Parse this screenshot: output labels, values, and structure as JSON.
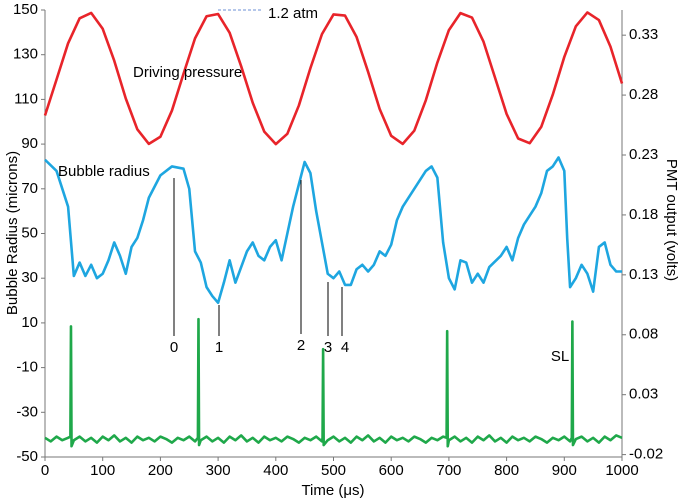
{
  "chart_data": {
    "type": "line",
    "x_label": "Time (μs)",
    "y_label": "Bubble Radius (microns)",
    "y2_label": "PMT output (volts)",
    "xlim": [
      0,
      1000
    ],
    "xticks": [
      0,
      100,
      200,
      300,
      400,
      500,
      600,
      700,
      800,
      900,
      1000
    ],
    "ylim": [
      -50,
      150
    ],
    "yticks": [
      -50,
      -30,
      -10,
      10,
      30,
      50,
      70,
      90,
      110,
      130,
      150
    ],
    "y2lim": [
      -0.022,
      0.351
    ],
    "y2ticks": [
      -0.02,
      0.03,
      0.08,
      0.13,
      0.18,
      0.23,
      0.28,
      0.33
    ],
    "grid": false,
    "annotations": [
      "1.2 atm",
      "Driving pressure",
      "Bubble radius",
      "0",
      "1",
      "2",
      "3",
      "4",
      "SL"
    ],
    "series": [
      {
        "name": "Driving pressure",
        "color": "#e8242a",
        "x": [
          0,
          20,
          40,
          60,
          80,
          100,
          120,
          140,
          160,
          180,
          200,
          220,
          240,
          260,
          280,
          300,
          320,
          340,
          360,
          380,
          400,
          420,
          440,
          460,
          480,
          500,
          520,
          540,
          560,
          580,
          600,
          620,
          640,
          660,
          680,
          700,
          720,
          740,
          760,
          780,
          800,
          820,
          840,
          860,
          880,
          900,
          920,
          940,
          960,
          980,
          1000
        ],
        "values": [
          102.8,
          118.9,
          135.1,
          146.3,
          148.7,
          141.6,
          127.3,
          110.4,
          96.6,
          90.1,
          93.3,
          105.0,
          121.4,
          137.3,
          147.2,
          148.2,
          139.8,
          124.8,
          108.5,
          95.6,
          90.0,
          94.6,
          107.3,
          124.0,
          139.2,
          148.0,
          147.5,
          137.9,
          122.3,
          105.7,
          93.7,
          90.1,
          96.0,
          109.6,
          126.5,
          141.0,
          148.6,
          146.6,
          135.8,
          119.7,
          103.5,
          92.5,
          90.4,
          97.7,
          112.1,
          129.0,
          142.7,
          148.9,
          145.5,
          133.6,
          117.1
        ]
      },
      {
        "name": "Bubble radius",
        "color": "#1ea6e0",
        "x": [
          0,
          20,
          40,
          50,
          60,
          70,
          80,
          90,
          100,
          110,
          120,
          130,
          140,
          150,
          160,
          170,
          180,
          200,
          220,
          240,
          250,
          260,
          270,
          280,
          290,
          300,
          310,
          320,
          330,
          340,
          350,
          360,
          370,
          380,
          390,
          400,
          410,
          420,
          430,
          440,
          450,
          460,
          470,
          480,
          490,
          500,
          510,
          520,
          530,
          540,
          550,
          560,
          570,
          580,
          590,
          600,
          610,
          620,
          640,
          660,
          670,
          680,
          690,
          700,
          710,
          720,
          730,
          740,
          750,
          760,
          770,
          790,
          800,
          810,
          820,
          830,
          850,
          860,
          870,
          880,
          890,
          900,
          905,
          910,
          920,
          930,
          940,
          950,
          960,
          970,
          980,
          990,
          1000
        ],
        "values": [
          83,
          78,
          62,
          31,
          37,
          31,
          36,
          30,
          32,
          38,
          46,
          40,
          32,
          44,
          48,
          56,
          66,
          76,
          80,
          79,
          70,
          42,
          37,
          26,
          22,
          19,
          28,
          38,
          28,
          35,
          42,
          46,
          40,
          38,
          44,
          47,
          38,
          50,
          62,
          72,
          82,
          77,
          60,
          46,
          32,
          30,
          33,
          27,
          27,
          34,
          36,
          33,
          36,
          42,
          40,
          45,
          56,
          62,
          70,
          78,
          80,
          75,
          46,
          30,
          25,
          38,
          37,
          28,
          32,
          28,
          35,
          40,
          44,
          38,
          48,
          54,
          62,
          68,
          78,
          80,
          84,
          78,
          48,
          26,
          30,
          36,
          32,
          24,
          44,
          46,
          36,
          33,
          33
        ]
      },
      {
        "name": "PMT output",
        "color": "#1fa84a",
        "axis": "y2",
        "x": [
          0,
          10,
          20,
          30,
          40,
          44,
          45,
          46,
          50,
          60,
          70,
          80,
          90,
          100,
          110,
          120,
          130,
          140,
          150,
          160,
          170,
          180,
          190,
          200,
          210,
          220,
          230,
          240,
          250,
          260,
          265,
          266,
          267,
          270,
          280,
          290,
          300,
          310,
          320,
          330,
          340,
          350,
          360,
          370,
          380,
          390,
          400,
          410,
          420,
          430,
          440,
          450,
          460,
          470,
          480,
          481,
          482,
          483,
          490,
          500,
          510,
          520,
          530,
          540,
          550,
          560,
          570,
          580,
          590,
          600,
          610,
          620,
          630,
          640,
          650,
          660,
          670,
          680,
          690,
          696,
          697,
          698,
          700,
          710,
          720,
          730,
          740,
          750,
          760,
          770,
          780,
          790,
          800,
          810,
          820,
          830,
          840,
          850,
          860,
          870,
          880,
          890,
          900,
          910,
          913,
          914,
          915,
          920,
          930,
          940,
          950,
          960,
          970,
          980,
          990,
          1000
        ],
        "values": [
          -0.006,
          -0.009,
          -0.005,
          -0.008,
          -0.006,
          -0.005,
          0.087,
          -0.013,
          -0.008,
          -0.005,
          -0.009,
          -0.006,
          -0.01,
          -0.005,
          -0.008,
          -0.004,
          -0.009,
          -0.006,
          -0.01,
          -0.005,
          -0.008,
          -0.006,
          -0.009,
          -0.005,
          -0.007,
          -0.01,
          -0.006,
          -0.008,
          -0.005,
          -0.009,
          -0.006,
          0.093,
          -0.012,
          -0.008,
          -0.005,
          -0.009,
          -0.006,
          -0.01,
          -0.005,
          -0.008,
          -0.004,
          -0.009,
          -0.006,
          -0.01,
          -0.005,
          -0.008,
          -0.006,
          -0.009,
          -0.005,
          -0.007,
          -0.01,
          -0.006,
          -0.008,
          -0.005,
          -0.009,
          -0.006,
          0.068,
          -0.012,
          -0.008,
          -0.005,
          -0.009,
          -0.006,
          -0.01,
          -0.005,
          -0.008,
          -0.004,
          -0.009,
          -0.006,
          -0.01,
          -0.005,
          -0.008,
          -0.006,
          -0.009,
          -0.005,
          -0.007,
          -0.01,
          -0.006,
          -0.008,
          -0.005,
          -0.006,
          0.083,
          -0.013,
          -0.008,
          -0.005,
          -0.009,
          -0.006,
          -0.01,
          -0.005,
          -0.008,
          -0.004,
          -0.009,
          -0.006,
          -0.01,
          -0.005,
          -0.008,
          -0.006,
          -0.009,
          -0.005,
          -0.007,
          -0.01,
          -0.006,
          -0.008,
          -0.005,
          -0.009,
          -0.006,
          0.091,
          -0.012,
          -0.007,
          -0.005,
          -0.009,
          -0.006,
          -0.01,
          -0.005,
          -0.008,
          -0.004,
          -0.006
        ]
      }
    ]
  }
}
